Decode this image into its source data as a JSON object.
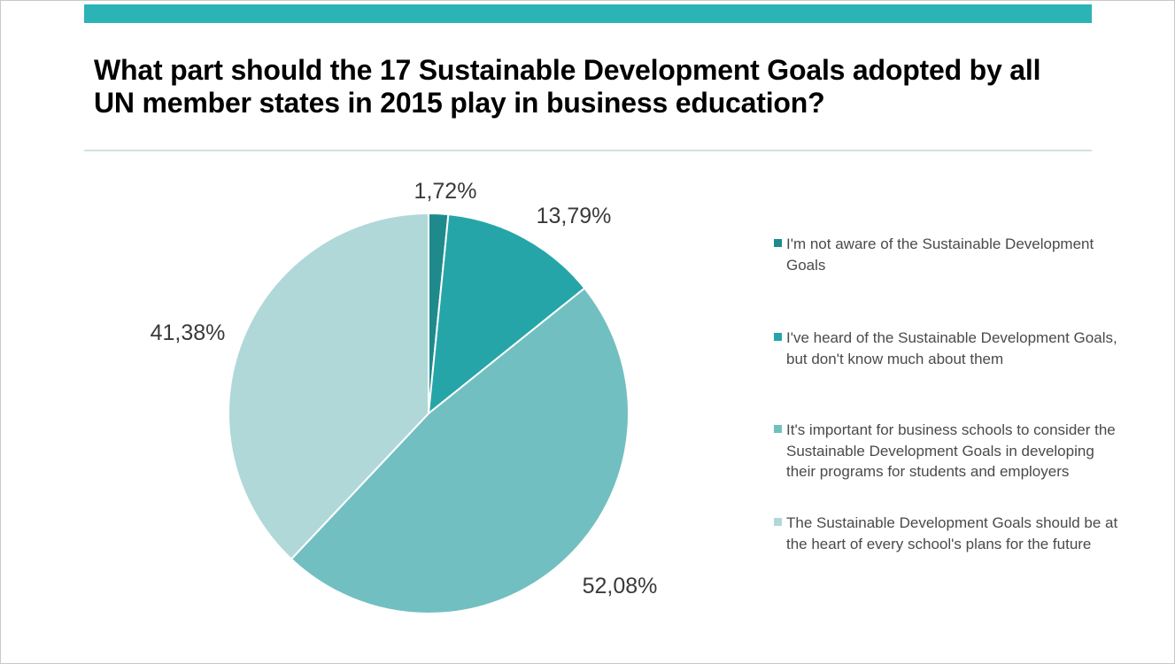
{
  "chart_data": {
    "type": "pie",
    "title": "What part should the 17 Sustainable Development Goals adopted by all UN member states in 2015 play in business education?",
    "slices": [
      {
        "label": "I'm not aware of the Sustainable Development Goals",
        "value": 1.72,
        "value_label": "1,72%",
        "color": "#1f8a8c"
      },
      {
        "label": "I've heard of the Sustainable Development Goals, but don't know much about them",
        "value": 13.79,
        "value_label": "13,79%",
        "color": "#26a5a8"
      },
      {
        "label": "It's important for business schools to consider the Sustainable Development Goals in developing their programs for students and employers",
        "value": 52.08,
        "value_label": "52,08%",
        "color": "#72bfc1"
      },
      {
        "label": "The Sustainable Development Goals should be at the heart of every school's plans for the future",
        "value": 41.38,
        "value_label": "41,38%",
        "color": "#b1d8d9"
      }
    ],
    "legend_position": "right"
  },
  "colors": {
    "accent_bar": "#2bb3b5",
    "divider": "#cde2e2"
  }
}
